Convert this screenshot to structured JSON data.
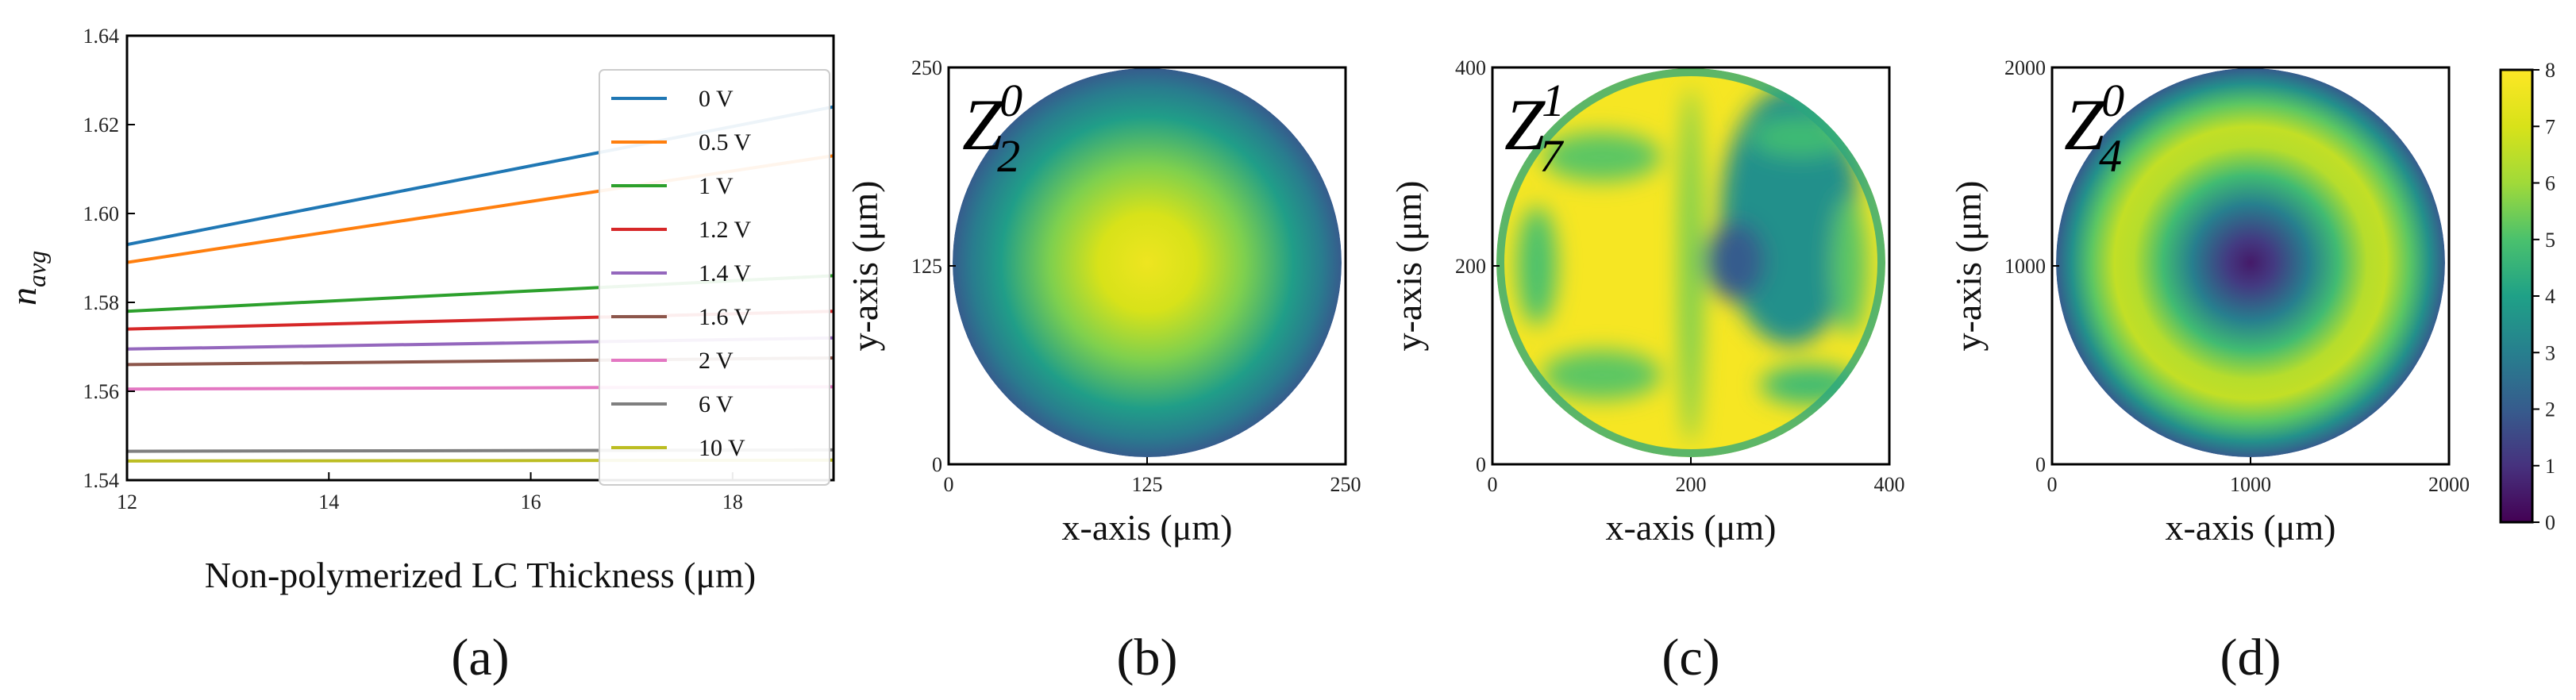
{
  "colors": {
    "0 V": "#1f77b4",
    "0.5 V": "#ff7f0e",
    "1 V": "#2ca02c",
    "1.2 V": "#d62728",
    "1.4 V": "#9467bd",
    "1.6 V": "#8c564b",
    "2 V": "#e377c2",
    "6 V": "#7f7f7f",
    "10 V": "#bcbd22"
  },
  "panel_labels": [
    "(a)",
    "(b)",
    "(c)",
    "(d)"
  ],
  "chart_data": [
    {
      "id": "a",
      "type": "line",
      "title": "",
      "xlabel": "Non-polymerized LC Thickness (μm)",
      "ylabel_base": "n",
      "ylabel_sub": "avg",
      "xlim": [
        12,
        19
      ],
      "ylim": [
        1.54,
        1.64
      ],
      "xticks": [
        "12",
        "14",
        "16",
        "18"
      ],
      "yticks": [
        "1.54",
        "1.56",
        "1.58",
        "1.60",
        "1.62",
        "1.64"
      ],
      "legend_position": "right",
      "series": [
        {
          "name": "0 V",
          "x": [
            12,
            19
          ],
          "y": [
            1.593,
            1.624
          ]
        },
        {
          "name": "0.5 V",
          "x": [
            12,
            19
          ],
          "y": [
            1.589,
            1.613
          ]
        },
        {
          "name": "1 V",
          "x": [
            12,
            19
          ],
          "y": [
            1.578,
            1.586
          ]
        },
        {
          "name": "1.2 V",
          "x": [
            12,
            19
          ],
          "y": [
            1.574,
            1.578
          ]
        },
        {
          "name": "1.4 V",
          "x": [
            12,
            19
          ],
          "y": [
            1.5695,
            1.572
          ]
        },
        {
          "name": "1.6 V",
          "x": [
            12,
            19
          ],
          "y": [
            1.566,
            1.5675
          ]
        },
        {
          "name": "2 V",
          "x": [
            12,
            19
          ],
          "y": [
            1.5605,
            1.561
          ]
        },
        {
          "name": "6 V",
          "x": [
            12,
            19
          ],
          "y": [
            1.5465,
            1.5468
          ]
        },
        {
          "name": "10 V",
          "x": [
            12,
            19
          ],
          "y": [
            1.5443,
            1.5445
          ]
        }
      ]
    },
    {
      "id": "b",
      "type": "heatmap",
      "zernike": {
        "base": "Z",
        "sub": "2",
        "sup": "0"
      },
      "xlabel": "x-axis (μm)",
      "ylabel": "y-axis (μm)",
      "xlim": [
        0,
        250
      ],
      "ylim": [
        0,
        250
      ],
      "xticks": [
        "0",
        "125",
        "250"
      ],
      "yticks": [
        "0",
        "125",
        "250"
      ],
      "value_range": [
        0,
        8
      ],
      "radial_profile": {
        "r": [
          0,
          0.25,
          0.5,
          0.75,
          0.9,
          1.0
        ],
        "value": [
          7.6,
          7.0,
          5.6,
          3.9,
          2.9,
          2.0
        ]
      }
    },
    {
      "id": "c",
      "type": "heatmap",
      "zernike": {
        "base": "Z",
        "sub": "7",
        "sup": "1"
      },
      "xlabel": "x-axis (μm)",
      "ylabel": "y-axis (μm)",
      "xlim": [
        0,
        400
      ],
      "ylim": [
        0,
        400
      ],
      "xticks": [
        "0",
        "200",
        "400"
      ],
      "yticks": [
        "0",
        "200",
        "400"
      ],
      "value_range": [
        0,
        8
      ],
      "background_value": 7.8,
      "features": [
        {
          "kind": "blob",
          "cx": 300,
          "cy": 250,
          "rx": 70,
          "ry": 130,
          "value": 3.5
        },
        {
          "kind": "blob",
          "cx": 245,
          "cy": 205,
          "rx": 30,
          "ry": 40,
          "value": 2.0
        },
        {
          "kind": "blob",
          "cx": 200,
          "cy": 200,
          "rx": 12,
          "ry": 180,
          "value": 5.5
        },
        {
          "kind": "blob",
          "cx": 110,
          "cy": 310,
          "rx": 60,
          "ry": 25,
          "value": 5.2
        },
        {
          "kind": "blob",
          "cx": 110,
          "cy": 90,
          "rx": 60,
          "ry": 25,
          "value": 5.2
        },
        {
          "kind": "blob",
          "cx": 310,
          "cy": 330,
          "rx": 50,
          "ry": 20,
          "value": 4.8
        },
        {
          "kind": "blob",
          "cx": 320,
          "cy": 80,
          "rx": 50,
          "ry": 20,
          "value": 4.8
        },
        {
          "kind": "blob",
          "cx": 45,
          "cy": 200,
          "rx": 20,
          "ry": 60,
          "value": 5.0
        },
        {
          "kind": "blob",
          "cx": 360,
          "cy": 200,
          "rx": 18,
          "ry": 70,
          "value": 5.2
        }
      ]
    },
    {
      "id": "d",
      "type": "heatmap",
      "zernike": {
        "base": "Z",
        "sub": "4",
        "sup": "0"
      },
      "xlabel": "x-axis (μm)",
      "ylabel": "y-axis (μm)",
      "xlim": [
        0,
        2000
      ],
      "ylim": [
        0,
        2000
      ],
      "xticks": [
        "0",
        "1000",
        "2000"
      ],
      "yticks": [
        "0",
        "1000",
        "2000"
      ],
      "value_range": [
        0,
        8
      ],
      "radial_profile": {
        "r": [
          0,
          0.12,
          0.3,
          0.45,
          0.6,
          0.7,
          0.82,
          0.92,
          1.0
        ],
        "value": [
          0.5,
          1.2,
          3.0,
          4.8,
          6.4,
          6.6,
          5.2,
          3.5,
          2.0
        ]
      }
    }
  ],
  "colorbar": {
    "min": 0,
    "max": 8,
    "ticks": [
      "0",
      "1",
      "2",
      "3",
      "4",
      "5",
      "6",
      "7",
      "8"
    ]
  }
}
